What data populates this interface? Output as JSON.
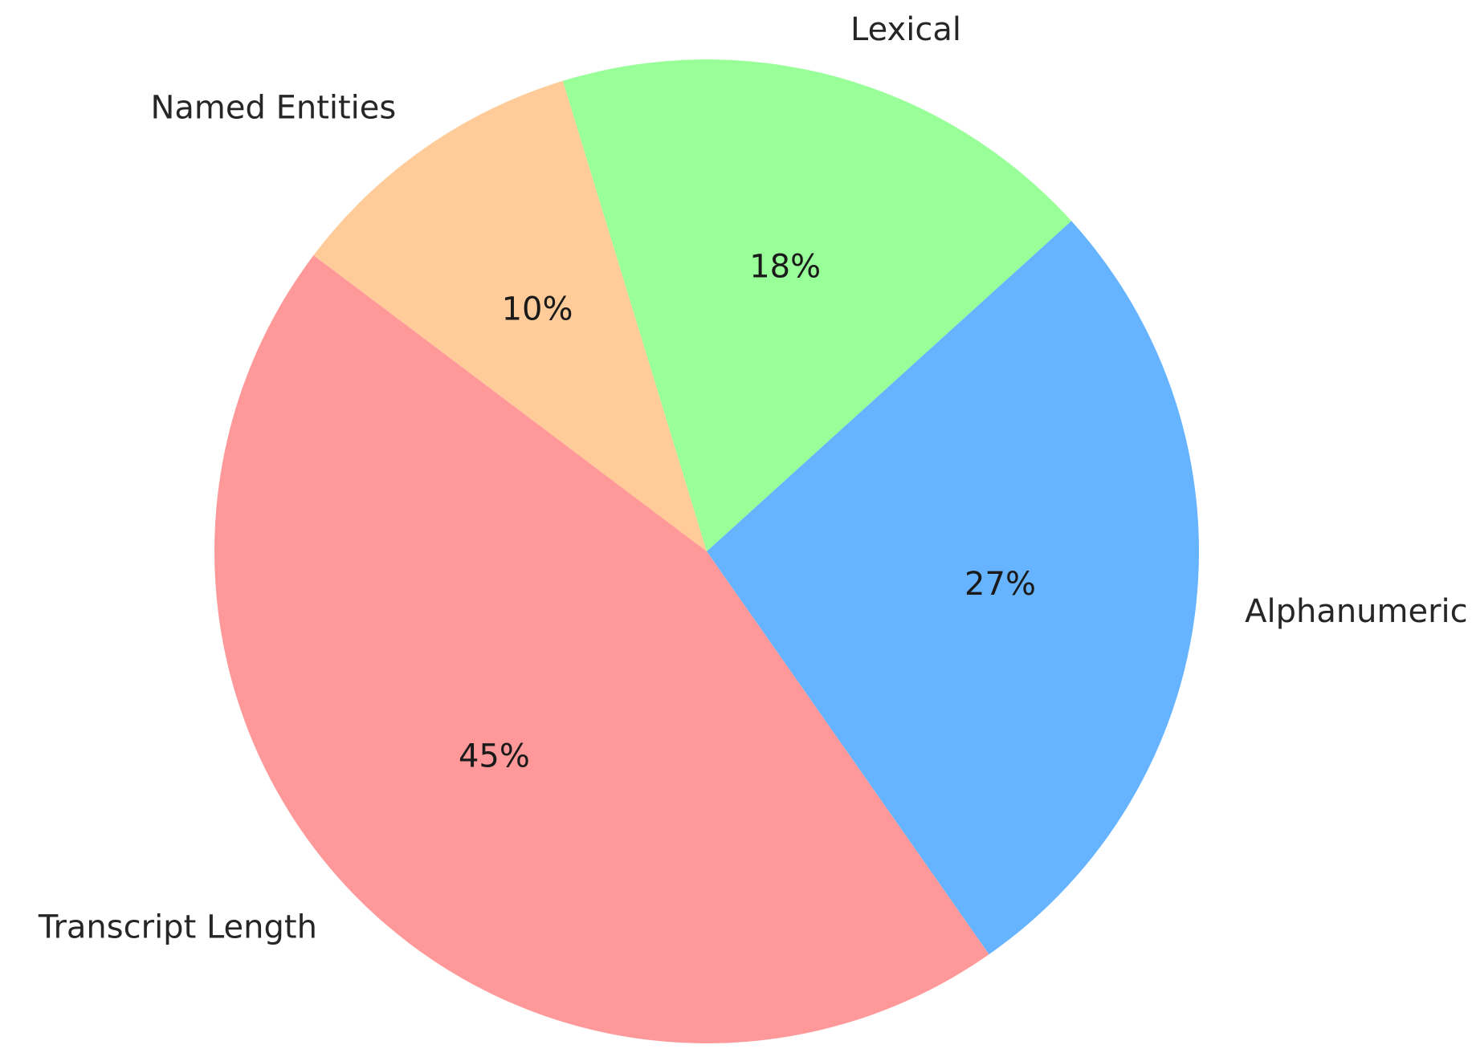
{
  "chart_data": {
    "type": "pie",
    "slices": [
      {
        "label": "Alphanumeric",
        "value": 27,
        "pct_label": "27%",
        "color": "#66b3ff"
      },
      {
        "label": "Lexical",
        "value": 18,
        "pct_label": "18%",
        "color": "#99ff99"
      },
      {
        "label": "Named Entities",
        "value": 10,
        "pct_label": "10%",
        "color": "#ffcc99"
      },
      {
        "label": "Transcript Length",
        "value": 45,
        "pct_label": "45%",
        "color": "#ff9999"
      }
    ],
    "start_angle_deg": -55,
    "direction": "counterclockwise",
    "legend": "none"
  }
}
